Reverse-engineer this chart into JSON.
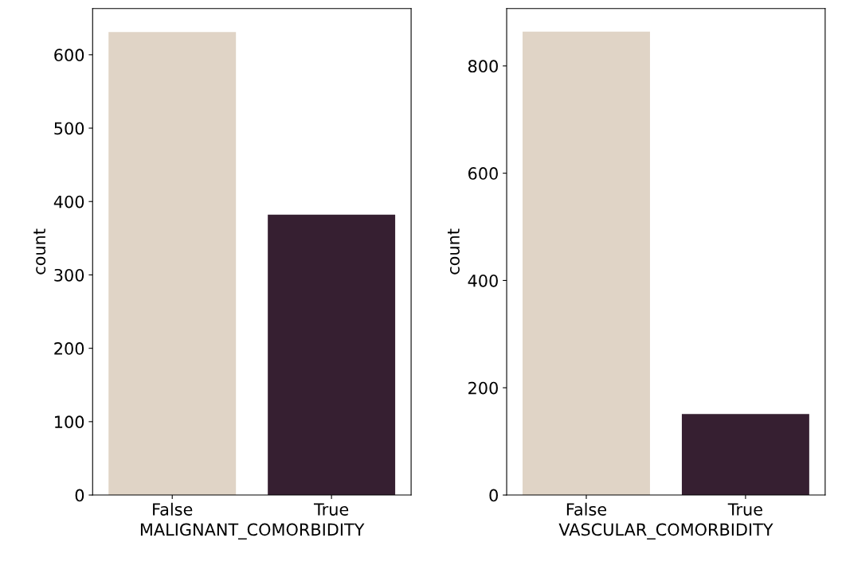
{
  "chart_data": [
    {
      "type": "bar",
      "xlabel": "MALIGNANT_COMORBIDITY",
      "ylabel": "count",
      "categories": [
        "False",
        "True"
      ],
      "values": [
        631,
        382
      ],
      "colors": [
        "#e0d4c6",
        "#361f31"
      ],
      "ylim": [
        0,
        663
      ],
      "yticks": [
        0,
        100,
        200,
        300,
        400,
        500,
        600
      ],
      "grid": false,
      "legend": false
    },
    {
      "type": "bar",
      "xlabel": "VASCULAR_COMORBIDITY",
      "ylabel": "count",
      "categories": [
        "False",
        "True"
      ],
      "values": [
        864,
        151
      ],
      "colors": [
        "#e0d4c6",
        "#361f31"
      ],
      "ylim": [
        0,
        907
      ],
      "yticks": [
        0,
        200,
        400,
        600,
        800
      ],
      "grid": false,
      "legend": false
    }
  ]
}
